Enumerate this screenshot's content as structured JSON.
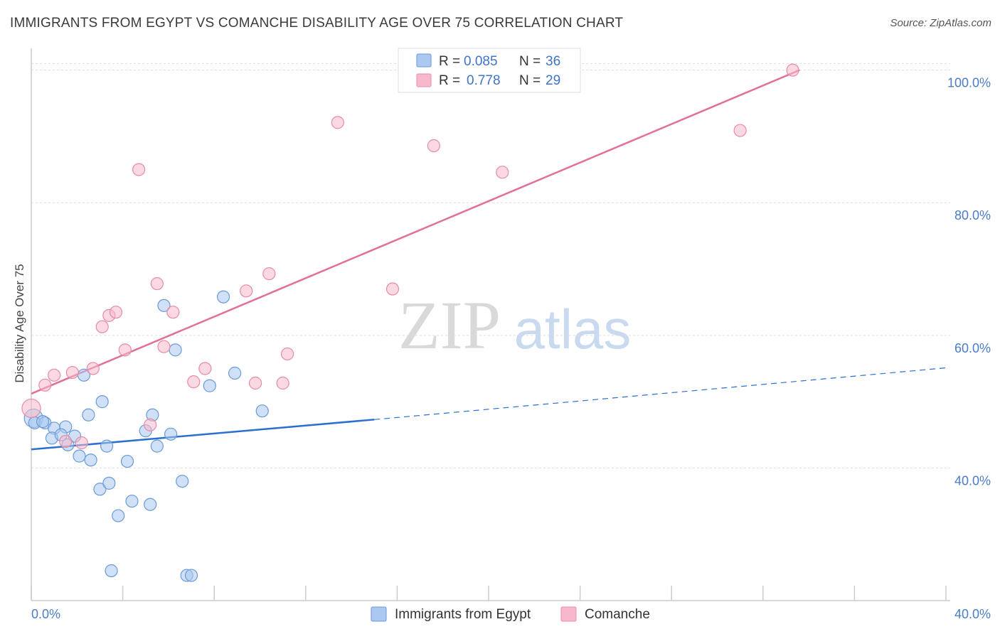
{
  "title": "IMMIGRANTS FROM EGYPT VS COMANCHE DISABILITY AGE OVER 75 CORRELATION CHART",
  "source": "Source: ZipAtlas.com",
  "watermark": {
    "zip": "ZIP",
    "atlas": "atlas"
  },
  "colors": {
    "blue_fill": "#aac8f0",
    "blue_stroke": "#6a9ad8",
    "blue_line": "#2b6fd1",
    "pink_fill": "#f6b9cb",
    "pink_stroke": "#e88aa6",
    "pink_line": "#e0709a",
    "tick_text": "#4a7cc9",
    "grid": "#dddddd"
  },
  "chart_data": {
    "type": "scatter",
    "title": "IMMIGRANTS FROM EGYPT VS COMANCHE DISABILITY AGE OVER 75 CORRELATION CHART",
    "xlabel": "",
    "ylabel": "Disability Age Over 75",
    "xlim": [
      0,
      40
    ],
    "ylim": [
      20,
      102
    ],
    "x_tick_labels": [
      "0.0%",
      "40.0%"
    ],
    "y_ticks": [
      40,
      60,
      80,
      100
    ],
    "y_tick_labels": [
      "40.0%",
      "60.0%",
      "80.0%",
      "100.0%"
    ],
    "legend": [
      {
        "r_label": "R =",
        "r_value": "0.085",
        "n_label": "N =",
        "n_value": "36"
      },
      {
        "r_label": "R =",
        "r_value": "0.778",
        "n_label": "N =",
        "n_value": "29"
      }
    ],
    "series": [
      {
        "name": "Immigrants from Egypt",
        "color": "blue",
        "points": [
          [
            0.1,
            47.5
          ],
          [
            0.15,
            46.8
          ],
          [
            0.6,
            46.8
          ],
          [
            0.5,
            47.0
          ],
          [
            1.0,
            46.0
          ],
          [
            1.5,
            46.2
          ],
          [
            0.9,
            44.5
          ],
          [
            1.3,
            45.0
          ],
          [
            1.6,
            43.5
          ],
          [
            1.9,
            44.8
          ],
          [
            2.3,
            54.0
          ],
          [
            2.5,
            48.0
          ],
          [
            3.1,
            50.0
          ],
          [
            2.1,
            41.8
          ],
          [
            2.6,
            41.2
          ],
          [
            3.3,
            43.3
          ],
          [
            3.0,
            36.8
          ],
          [
            3.4,
            37.7
          ],
          [
            4.2,
            41.0
          ],
          [
            3.8,
            32.8
          ],
          [
            4.4,
            35.0
          ],
          [
            5.0,
            45.6
          ],
          [
            5.2,
            34.5
          ],
          [
            5.3,
            48.0
          ],
          [
            5.5,
            43.3
          ],
          [
            6.1,
            45.1
          ],
          [
            5.8,
            64.5
          ],
          [
            6.3,
            57.8
          ],
          [
            6.6,
            38.0
          ],
          [
            7.8,
            52.4
          ],
          [
            8.4,
            65.8
          ],
          [
            8.9,
            54.3
          ],
          [
            10.1,
            48.6
          ],
          [
            3.5,
            24.5
          ],
          [
            6.8,
            23.8
          ],
          [
            7.0,
            23.8
          ]
        ]
      },
      {
        "name": "Comanche",
        "color": "pink",
        "points": [
          [
            0.0,
            49.0
          ],
          [
            0.6,
            52.5
          ],
          [
            1.0,
            54.0
          ],
          [
            1.5,
            44.0
          ],
          [
            1.8,
            54.4
          ],
          [
            2.2,
            43.8
          ],
          [
            2.7,
            55.0
          ],
          [
            3.1,
            61.3
          ],
          [
            3.4,
            63.0
          ],
          [
            3.7,
            63.5
          ],
          [
            4.1,
            57.8
          ],
          [
            4.7,
            85.0
          ],
          [
            5.2,
            46.5
          ],
          [
            5.5,
            67.8
          ],
          [
            5.8,
            58.3
          ],
          [
            6.2,
            63.5
          ],
          [
            7.1,
            53.0
          ],
          [
            7.6,
            55.0
          ],
          [
            9.4,
            66.7
          ],
          [
            9.8,
            52.8
          ],
          [
            10.4,
            69.3
          ],
          [
            11.0,
            52.8
          ],
          [
            11.2,
            57.2
          ],
          [
            13.4,
            92.1
          ],
          [
            15.8,
            67.0
          ],
          [
            17.6,
            88.6
          ],
          [
            20.6,
            84.6
          ],
          [
            31.0,
            90.9
          ],
          [
            33.3,
            100.0
          ]
        ]
      }
    ],
    "trend_lines": [
      {
        "series": "Immigrants from Egypt",
        "solid": [
          [
            0,
            42.8
          ],
          [
            15,
            47.3
          ]
        ],
        "dashed": [
          [
            15,
            47.3
          ],
          [
            40,
            55.1
          ]
        ]
      },
      {
        "series": "Comanche",
        "solid": [
          [
            0,
            51.2
          ],
          [
            33.6,
            100.0
          ]
        ]
      }
    ]
  }
}
